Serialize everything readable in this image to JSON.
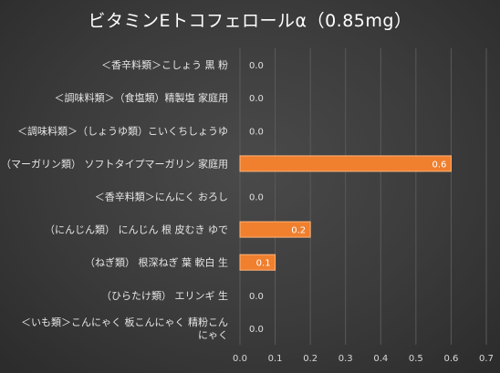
{
  "chart_data": {
    "type": "bar",
    "orientation": "horizontal",
    "title": "ビタミンEトコフェロールα（0.85mg）",
    "categories": [
      [
        "＜香辛料類＞こしょう 黒 粉"
      ],
      [
        "＜調味料類＞（食塩類）精製塩 家庭用"
      ],
      [
        "＜調味料類＞（しょうゆ類）こいくちしょうゆ"
      ],
      [
        "（マーガリン類） ソフトタイプマーガリン 家庭用"
      ],
      [
        "＜香辛料類＞にんにく おろし"
      ],
      [
        "（にんじん類） にんじん 根 皮むき ゆで"
      ],
      [
        "（ねぎ類） 根深ねぎ 葉 軟白 生"
      ],
      [
        "（ひらたけ類） エリンギ 生"
      ],
      [
        "＜いも類＞こんにゃく 板こんにゃく 精粉こん",
        "にゃく"
      ]
    ],
    "values": [
      0.0,
      0.0,
      0.0,
      0.6,
      0.0,
      0.2,
      0.1,
      0.0,
      0.0
    ],
    "value_labels": [
      "0.0",
      "0.0",
      "0.0",
      "0.6",
      "0.0",
      "0.2",
      "0.1",
      "0.0",
      "0.0"
    ],
    "x_ticks": [
      "0.0",
      "0.1",
      "0.2",
      "0.3",
      "0.4",
      "0.5",
      "0.6",
      "0.7"
    ],
    "xlim": [
      0,
      0.7
    ],
    "grid": true,
    "legend": false,
    "colors": {
      "bar": "#f07f2e",
      "bar_edge": "#ffb47a",
      "grid": "#5a5a5a",
      "label_on_bar": "#ffffff",
      "label_zero": "#e0e0e0"
    }
  }
}
